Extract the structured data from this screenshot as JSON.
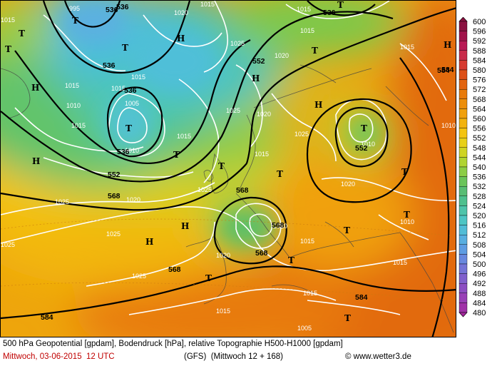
{
  "map": {
    "pressure_labels": [
      "995",
      "1020",
      "1025",
      "1015",
      "1005",
      "1010",
      "1025",
      "1015",
      "1015",
      "1020",
      "1025",
      "1020",
      "1015",
      "1015",
      "1025",
      "1020",
      "1010",
      "1015",
      "1025",
      "1025",
      "1015",
      "1025",
      "1020",
      "1025",
      "1015",
      "1015",
      "1010",
      "1015",
      "1010",
      "1015",
      "1015",
      "1005",
      "1020",
      "1015",
      "1010",
      "1015",
      "1015",
      "1010"
    ],
    "geopotential_labels": [
      "536",
      "536",
      "536",
      "536",
      "536",
      "552",
      "552",
      "568",
      "552",
      "568",
      "568",
      "568",
      "584",
      "584",
      "584",
      "568",
      "584",
      "536"
    ],
    "pressure_systems": [
      "T",
      "T",
      "T",
      "T",
      "T",
      "T",
      "H",
      "H",
      "H",
      "H",
      "H",
      "H",
      "H",
      "T",
      "T",
      "T",
      "T",
      "T",
      "T",
      "T",
      "T",
      "H",
      "T",
      "T",
      "T"
    ]
  },
  "legend": {
    "values": [
      "600",
      "596",
      "592",
      "588",
      "584",
      "580",
      "576",
      "572",
      "568",
      "564",
      "560",
      "556",
      "552",
      "548",
      "544",
      "540",
      "536",
      "532",
      "528",
      "524",
      "520",
      "516",
      "512",
      "508",
      "504",
      "500",
      "496",
      "492",
      "488",
      "484",
      "480"
    ],
    "colors": [
      "#8a1040",
      "#a0124a",
      "#b81a55",
      "#c82a4a",
      "#d63a30",
      "#dd5018",
      "#e26410",
      "#e87a0a",
      "#ec8e0a",
      "#f0a00c",
      "#f2b30e",
      "#f4c410",
      "#e8d018",
      "#cfd424",
      "#b0d432",
      "#8ccd46",
      "#6ac45a",
      "#58bd74",
      "#4ec08e",
      "#4ec4aa",
      "#4ec5c4",
      "#52bcd6",
      "#58aee0",
      "#5e9ce2",
      "#6888de",
      "#7474d6",
      "#8060cc",
      "#8c4ec2",
      "#9840b6",
      "#a032a8",
      "#a4289c"
    ]
  },
  "footer": {
    "line1": "500 hPa Geopotential [gpdam], Bodendruck [hPa], relative Topographie H500-H1000 [gpdam]",
    "line2": "Mittwoch, 03-06-2015  12 UTC",
    "model": "(GFS)  (Mittwoch 12 + 168)",
    "credit": "© www.wetter3.de"
  }
}
